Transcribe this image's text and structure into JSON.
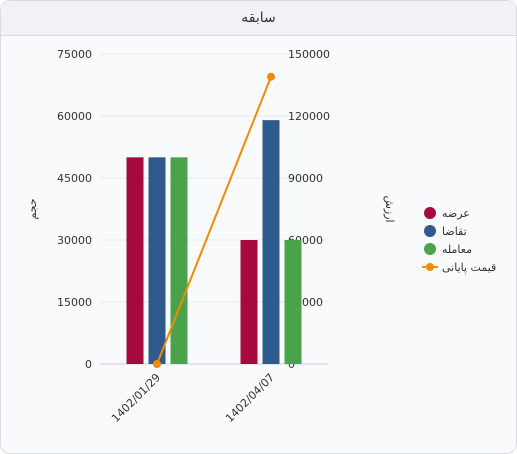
{
  "panel": {
    "title": "سابقه"
  },
  "chart_data": {
    "type": "bar",
    "categories": [
      "1402/01/29",
      "1402/04/07"
    ],
    "series": [
      {
        "name": "عرضه",
        "type": "bar",
        "axis": "left",
        "color": "#a50a3e",
        "values": [
          50000,
          30000
        ]
      },
      {
        "name": "تقاضا",
        "type": "bar",
        "axis": "left",
        "color": "#2f5a8e",
        "values": [
          50000,
          59000
        ]
      },
      {
        "name": "معامله",
        "type": "bar",
        "axis": "left",
        "color": "#4aa34a",
        "values": [
          50000,
          30000
        ]
      },
      {
        "name": "قیمت پایانی",
        "type": "line",
        "axis": "right",
        "color": "#ee8b08",
        "values": [
          0,
          139000
        ]
      }
    ],
    "y_left": {
      "label": "حجم",
      "range": [
        0,
        75000
      ],
      "ticks": [
        "0",
        "15000",
        "30000",
        "45000",
        "60000",
        "75000"
      ]
    },
    "y_right": {
      "label": "ارزش",
      "range": [
        0,
        150000
      ],
      "ticks": [
        "0",
        "30000",
        "60000",
        "90000",
        "120000",
        "150000"
      ]
    },
    "grid": true,
    "legend": "right"
  }
}
